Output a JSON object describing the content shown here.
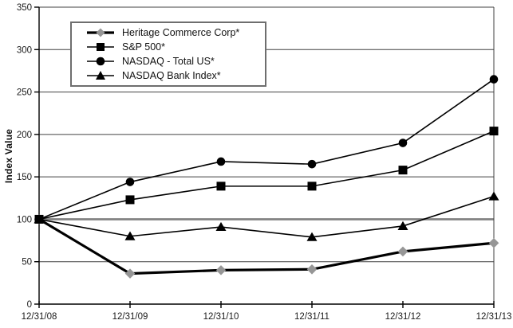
{
  "chart_data": {
    "type": "line",
    "title": "",
    "xlabel": "",
    "ylabel": "Index Value",
    "categories": [
      "12/31/08",
      "12/31/09",
      "12/31/10",
      "12/31/11",
      "12/31/12",
      "12/31/13"
    ],
    "ylim": [
      0,
      350
    ],
    "yticks": [
      0,
      50,
      100,
      150,
      200,
      250,
      300,
      350
    ],
    "emphasized_gridline": 100,
    "grid": true,
    "legend_position": "top-left",
    "draw_order": [
      0,
      3,
      2,
      1
    ],
    "series": [
      {
        "id": "heritage",
        "name": "Heritage Commerce Corp*",
        "marker": "diamond",
        "marker_color": "#969696",
        "line_color": "#000000",
        "line_width": 3.2,
        "values": [
          100,
          36,
          40,
          41,
          62,
          72
        ]
      },
      {
        "id": "sp500",
        "name": "S&P 500*",
        "marker": "square",
        "marker_color": "#000000",
        "line_color": "#000000",
        "line_width": 1.6,
        "values": [
          100,
          123,
          139,
          139,
          158,
          204
        ]
      },
      {
        "id": "nasdaq-total-us",
        "name": "NASDAQ - Total US*",
        "marker": "circle",
        "marker_color": "#000000",
        "line_color": "#000000",
        "line_width": 1.6,
        "values": [
          100,
          144,
          168,
          165,
          190,
          265
        ]
      },
      {
        "id": "nasdaq-bank",
        "name": "NASDAQ Bank Index*",
        "marker": "triangle",
        "marker_color": "#000000",
        "line_color": "#000000",
        "line_width": 1.6,
        "values": [
          100,
          80,
          91,
          79,
          92,
          127
        ]
      }
    ],
    "colors": {
      "grid": "#404040",
      "emph_grid": "#7f7f7f",
      "axis": "#000000",
      "background": "#ffffff",
      "legend_border": "#6e6e6e"
    }
  }
}
